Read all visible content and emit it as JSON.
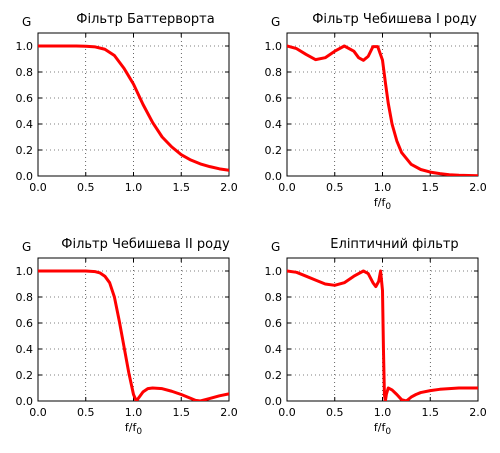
{
  "chart_data": [
    {
      "type": "line",
      "title": "Фільтр Баттерворта",
      "ylabel": "G",
      "xlabel": "",
      "xlim": [
        0.0,
        2.0
      ],
      "ylim": [
        0.0,
        1.1
      ],
      "xticks": [
        "0.0",
        "0.5",
        "1.0",
        "1.5",
        "2.0"
      ],
      "yticks": [
        "0.0",
        "0.2",
        "0.4",
        "0.6",
        "0.8",
        "1.0"
      ],
      "grid": true,
      "line_color": "#ff0000",
      "series": [
        {
          "x": [
            0.0,
            0.2,
            0.4,
            0.5,
            0.6,
            0.7,
            0.8,
            0.9,
            1.0,
            1.1,
            1.2,
            1.3,
            1.4,
            1.5,
            1.6,
            1.7,
            1.8,
            1.9,
            2.0
          ],
          "values": [
            1.0,
            1.0,
            1.0,
            0.998,
            0.993,
            0.975,
            0.927,
            0.829,
            0.707,
            0.55,
            0.412,
            0.3,
            0.224,
            0.164,
            0.123,
            0.093,
            0.072,
            0.055,
            0.044
          ]
        }
      ]
    },
    {
      "type": "line",
      "title": "Фільтр Чебишева I роду",
      "ylabel": "G",
      "xlabel": "f/f0",
      "xlim": [
        0.0,
        2.0
      ],
      "ylim": [
        0.0,
        1.1
      ],
      "xticks": [
        "0.0",
        "0.5",
        "1.0",
        "1.5",
        "2.0"
      ],
      "yticks": [
        "0.0",
        "0.2",
        "0.4",
        "0.6",
        "0.8",
        "1.0"
      ],
      "grid": true,
      "line_color": "#ff0000",
      "series": [
        {
          "x": [
            0.0,
            0.1,
            0.2,
            0.3,
            0.4,
            0.5,
            0.6,
            0.7,
            0.75,
            0.8,
            0.85,
            0.9,
            0.95,
            1.0,
            1.03,
            1.06,
            1.1,
            1.15,
            1.2,
            1.3,
            1.4,
            1.5,
            1.6,
            1.7,
            1.8,
            2.0
          ],
          "values": [
            1.0,
            0.98,
            0.935,
            0.895,
            0.91,
            0.96,
            1.0,
            0.96,
            0.91,
            0.89,
            0.92,
            0.995,
            0.995,
            0.891,
            0.72,
            0.56,
            0.4,
            0.27,
            0.18,
            0.09,
            0.05,
            0.03,
            0.018,
            0.01,
            0.006,
            0.002
          ]
        }
      ]
    },
    {
      "type": "line",
      "title": "Фільтр Чебишева II роду",
      "ylabel": "G",
      "xlabel": "f/f0",
      "xlim": [
        0.0,
        2.0
      ],
      "ylim": [
        0.0,
        1.1
      ],
      "xticks": [
        "0.0",
        "0.5",
        "1.0",
        "1.5",
        "2.0"
      ],
      "yticks": [
        "0.0",
        "0.2",
        "0.4",
        "0.6",
        "0.8",
        "1.0"
      ],
      "grid": true,
      "line_color": "#ff0000",
      "series": [
        {
          "x": [
            0.0,
            0.3,
            0.5,
            0.6,
            0.65,
            0.7,
            0.75,
            0.8,
            0.85,
            0.9,
            0.95,
            1.0,
            1.03,
            1.05,
            1.1,
            1.15,
            1.2,
            1.3,
            1.4,
            1.5,
            1.6,
            1.65,
            1.7,
            1.8,
            1.9,
            2.0
          ],
          "values": [
            1.0,
            1.0,
            1.0,
            0.995,
            0.985,
            0.96,
            0.91,
            0.8,
            0.62,
            0.42,
            0.22,
            0.05,
            0.0,
            0.02,
            0.07,
            0.095,
            0.1,
            0.095,
            0.075,
            0.05,
            0.02,
            0.005,
            0.0,
            0.02,
            0.04,
            0.055
          ]
        }
      ]
    },
    {
      "type": "line",
      "title": "Еліптичний фільтр",
      "ylabel": "G",
      "xlabel": "f/f0",
      "xlim": [
        0.0,
        2.0
      ],
      "ylim": [
        0.0,
        1.1
      ],
      "xticks": [
        "0.0",
        "0.5",
        "1.0",
        "1.5",
        "2.0"
      ],
      "yticks": [
        "0.0",
        "0.2",
        "0.4",
        "0.6",
        "0.8",
        "1.0"
      ],
      "grid": true,
      "line_color": "#ff0000",
      "series": [
        {
          "x": [
            0.0,
            0.1,
            0.2,
            0.3,
            0.4,
            0.5,
            0.6,
            0.7,
            0.8,
            0.85,
            0.9,
            0.93,
            0.96,
            0.98,
            1.0,
            1.01,
            1.02,
            1.03,
            1.04,
            1.06,
            1.1,
            1.15,
            1.2,
            1.25,
            1.3,
            1.35,
            1.4,
            1.5,
            1.6,
            1.7,
            1.8,
            2.0
          ],
          "values": [
            1.0,
            0.99,
            0.96,
            0.93,
            0.9,
            0.89,
            0.91,
            0.96,
            1.0,
            0.98,
            0.91,
            0.88,
            0.92,
            1.0,
            0.85,
            0.4,
            0.05,
            0.0,
            0.05,
            0.1,
            0.085,
            0.05,
            0.01,
            0.0,
            0.03,
            0.05,
            0.065,
            0.08,
            0.09,
            0.095,
            0.1,
            0.1
          ]
        }
      ]
    }
  ]
}
